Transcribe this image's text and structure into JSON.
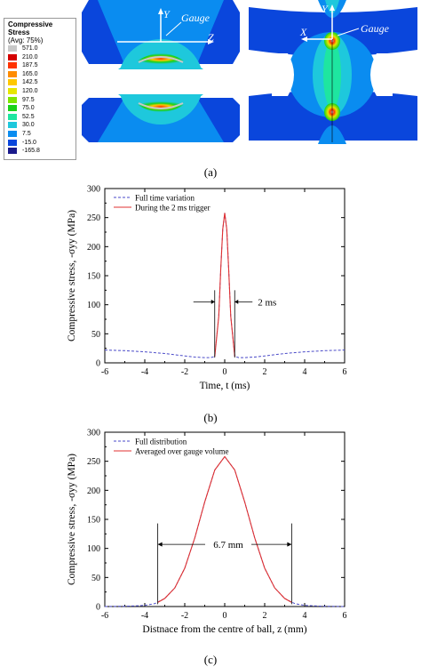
{
  "panel_a": {
    "legend": {
      "title_line1": "Compressive Stress",
      "title_line2": "(Avg: 75%)",
      "entries": [
        {
          "label": "571.0",
          "color": "#c8c8c8"
        },
        {
          "label": "210.0",
          "color": "#d40000"
        },
        {
          "label": "187.5",
          "color": "#ff3300"
        },
        {
          "label": "165.0",
          "color": "#ff8c00"
        },
        {
          "label": "142.5",
          "color": "#ffc800"
        },
        {
          "label": "120.0",
          "color": "#e6e600"
        },
        {
          "label": "97.5",
          "color": "#7ee600"
        },
        {
          "label": "75.0",
          "color": "#19d219"
        },
        {
          "label": "52.5",
          "color": "#1ee6a0"
        },
        {
          "label": "30.0",
          "color": "#1ec8dc"
        },
        {
          "label": "7.5",
          "color": "#0a8cf0"
        },
        {
          "label": "-15.0",
          "color": "#0a46dc"
        },
        {
          "label": "-165.8",
          "color": "#1a1a8c"
        }
      ]
    },
    "left_labels": {
      "y": "Y",
      "z": "Z",
      "gauge": "Gauge"
    },
    "right_labels": {
      "y": "Y",
      "x": "X",
      "gauge": "Gauge"
    },
    "caption": "(a)"
  },
  "chart_data": [
    {
      "type": "line",
      "panel": "(b)",
      "xlabel": "Time, t (ms)",
      "ylabel": "Compressive stress, -σyy (MPa)",
      "xlim": [
        -6,
        6
      ],
      "ylim": [
        0,
        300
      ],
      "xticks": [
        "-6",
        "-4",
        "-2",
        "0",
        "2",
        "4",
        "6"
      ],
      "yticks": [
        "0",
        "50",
        "100",
        "150",
        "200",
        "250",
        "300"
      ],
      "legend_position": "top-left",
      "annotation": "2 ms",
      "series": [
        {
          "name": "Full time variation",
          "style": "dashed",
          "color": "#4a4ac8",
          "x": [
            -6,
            -5,
            -4,
            -3,
            -2,
            -1.5,
            -1,
            -0.7,
            -0.5,
            -0.3,
            -0.2,
            -0.1,
            0,
            0.1,
            0.2,
            0.3,
            0.5,
            0.7,
            1,
            1.5,
            2,
            3,
            4,
            5,
            6
          ],
          "y": [
            22,
            21,
            19,
            16,
            12,
            10,
            9,
            9,
            11,
            80,
            160,
            230,
            258,
            230,
            160,
            80,
            11,
            9,
            9,
            10,
            12,
            16,
            19,
            21,
            22
          ]
        },
        {
          "name": "During the 2 ms trigger",
          "style": "solid",
          "color": "#e03030",
          "x": [
            -0.5,
            -0.3,
            -0.2,
            -0.1,
            0,
            0.1,
            0.2,
            0.3,
            0.5
          ],
          "y": [
            11,
            80,
            160,
            230,
            258,
            230,
            160,
            80,
            11
          ]
        }
      ]
    },
    {
      "type": "line",
      "panel": "(c)",
      "xlabel": "Distnace from the centre of ball, z (mm)",
      "ylabel": "Compressive stress, -σyy (MPa)",
      "xlim": [
        -6,
        6
      ],
      "ylim": [
        0,
        300
      ],
      "xticks": [
        "-6",
        "-4",
        "-2",
        "0",
        "2",
        "4",
        "6"
      ],
      "yticks": [
        "0",
        "50",
        "100",
        "150",
        "200",
        "250",
        "300"
      ],
      "legend_position": "top-left",
      "annotation": "6.7 mm",
      "series": [
        {
          "name": "Full distribution",
          "style": "dashed",
          "color": "#4a4ac8",
          "x": [
            -6,
            -5,
            -4.5,
            -4,
            -3.5,
            -3,
            -2.5,
            -2,
            -1.5,
            -1,
            -0.5,
            0,
            0.5,
            1,
            1.5,
            2,
            2.5,
            3,
            3.5,
            4,
            4.5,
            5,
            6
          ],
          "y": [
            0,
            0.5,
            1,
            2,
            5,
            14,
            32,
            66,
            118,
            180,
            235,
            258,
            235,
            180,
            118,
            66,
            32,
            14,
            5,
            2,
            1,
            0.5,
            0
          ]
        },
        {
          "name": "Averaged over gauge volume",
          "style": "solid",
          "color": "#e03030",
          "x": [
            -3.35,
            -3,
            -2.5,
            -2,
            -1.5,
            -1,
            -0.5,
            0,
            0.5,
            1,
            1.5,
            2,
            2.5,
            3,
            3.35
          ],
          "y": [
            7,
            14,
            32,
            66,
            118,
            180,
            235,
            258,
            235,
            180,
            118,
            66,
            32,
            14,
            7
          ]
        }
      ]
    }
  ]
}
